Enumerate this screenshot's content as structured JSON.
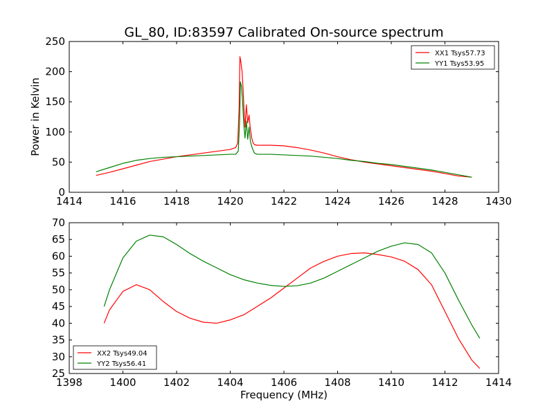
{
  "title": "GL_80, ID:83597 Calibrated On-source spectrum",
  "colors": {
    "series_a": "#ff0000",
    "series_b": "#008000",
    "axes": "#000000"
  },
  "chart_data": [
    {
      "type": "line",
      "ylabel": "Power in Kelvin",
      "xlabel": "",
      "xlim": [
        1414,
        1430
      ],
      "ylim": [
        0,
        250
      ],
      "xticks": [
        1414,
        1416,
        1418,
        1420,
        1422,
        1424,
        1426,
        1428,
        1430
      ],
      "yticks": [
        0,
        50,
        100,
        150,
        200,
        250
      ],
      "legend_position": "top-right",
      "grid": false,
      "series": [
        {
          "name": "XX1 Tsys57.73",
          "color": "#ff0000",
          "x": [
            1415.0,
            1415.5,
            1416.0,
            1416.5,
            1417.0,
            1417.5,
            1418.0,
            1418.5,
            1419.0,
            1419.5,
            1420.0,
            1420.2,
            1420.28,
            1420.33,
            1420.36,
            1420.4,
            1420.44,
            1420.48,
            1420.52,
            1420.55,
            1420.6,
            1420.65,
            1420.7,
            1420.75,
            1420.8,
            1420.85,
            1420.9,
            1421.0,
            1421.5,
            1422.0,
            1422.5,
            1423.0,
            1423.5,
            1424.0,
            1424.5,
            1425.0,
            1425.5,
            1426.0,
            1426.5,
            1427.0,
            1427.5,
            1428.0,
            1428.5,
            1429.0
          ],
          "y": [
            28,
            33,
            39,
            45,
            51,
            55,
            59,
            62,
            65,
            68,
            71,
            74,
            82,
            140,
            225,
            215,
            200,
            170,
            130,
            108,
            145,
            115,
            128,
            105,
            90,
            82,
            79,
            78,
            78,
            77,
            74,
            70,
            65,
            59,
            54,
            50,
            47,
            44,
            41,
            38,
            35,
            31,
            27,
            25
          ]
        },
        {
          "name": "YY1 Tsys53.95",
          "color": "#008000",
          "x": [
            1415.0,
            1415.5,
            1416.0,
            1416.5,
            1417.0,
            1417.5,
            1418.0,
            1418.5,
            1419.0,
            1419.5,
            1420.0,
            1420.2,
            1420.3,
            1420.35,
            1420.38,
            1420.42,
            1420.46,
            1420.5,
            1420.55,
            1420.6,
            1420.65,
            1420.7,
            1420.75,
            1420.8,
            1420.85,
            1420.9,
            1421.0,
            1421.5,
            1422.0,
            1422.5,
            1423.0,
            1423.5,
            1424.0,
            1424.5,
            1425.0,
            1425.5,
            1426.0,
            1426.5,
            1427.0,
            1427.5,
            1428.0,
            1428.5,
            1429.0
          ],
          "y": [
            34,
            41,
            48,
            53,
            56,
            58,
            59,
            60,
            61,
            62,
            63,
            63,
            68,
            120,
            183,
            175,
            150,
            115,
            90,
            118,
            88,
            108,
            85,
            76,
            70,
            65,
            63,
            63,
            62,
            61,
            60,
            58,
            56,
            53,
            51,
            48,
            46,
            43,
            40,
            37,
            33,
            29,
            25
          ]
        }
      ]
    },
    {
      "type": "line",
      "ylabel": "",
      "xlabel": "Frequency (MHz)",
      "xlim": [
        1398,
        1414
      ],
      "ylim": [
        25,
        70
      ],
      "xticks": [
        1398,
        1400,
        1402,
        1404,
        1406,
        1408,
        1410,
        1412,
        1414
      ],
      "yticks": [
        25,
        30,
        35,
        40,
        45,
        50,
        55,
        60,
        65,
        70
      ],
      "legend_position": "bottom-left",
      "grid": false,
      "series": [
        {
          "name": "XX2 Tsys49.04",
          "color": "#ff0000",
          "x": [
            1399.3,
            1399.5,
            1400.0,
            1400.5,
            1401.0,
            1401.5,
            1402.0,
            1402.5,
            1403.0,
            1403.5,
            1404.0,
            1404.5,
            1405.0,
            1405.5,
            1406.0,
            1406.5,
            1407.0,
            1407.5,
            1408.0,
            1408.5,
            1409.0,
            1409.5,
            1410.0,
            1410.5,
            1411.0,
            1411.5,
            1412.0,
            1412.5,
            1413.0,
            1413.3
          ],
          "y": [
            40,
            44,
            49.5,
            51.5,
            50,
            46.5,
            43.5,
            41.5,
            40.3,
            40,
            41,
            42.5,
            45,
            47.5,
            50.5,
            53.5,
            56.5,
            58.5,
            60,
            60.8,
            61,
            60.5,
            59.8,
            58.5,
            56,
            51.5,
            43.5,
            35.5,
            29,
            26.5
          ]
        },
        {
          "name": "YY2 Tsys56.41",
          "color": "#008000",
          "x": [
            1399.3,
            1399.5,
            1400.0,
            1400.5,
            1401.0,
            1401.5,
            1402.0,
            1402.5,
            1403.0,
            1403.5,
            1404.0,
            1404.5,
            1405.0,
            1405.5,
            1406.0,
            1406.5,
            1407.0,
            1407.5,
            1408.0,
            1408.5,
            1409.0,
            1409.5,
            1410.0,
            1410.5,
            1411.0,
            1411.5,
            1412.0,
            1412.5,
            1413.0,
            1413.3
          ],
          "y": [
            45,
            50,
            59.5,
            64.5,
            66.3,
            65.8,
            63.5,
            60.8,
            58.5,
            56.5,
            54.5,
            53,
            52,
            51.3,
            51,
            51.2,
            52,
            53.5,
            55.5,
            57.5,
            59.5,
            61.5,
            63,
            64,
            63.5,
            61,
            55,
            47,
            39.5,
            35.5
          ]
        }
      ]
    }
  ]
}
